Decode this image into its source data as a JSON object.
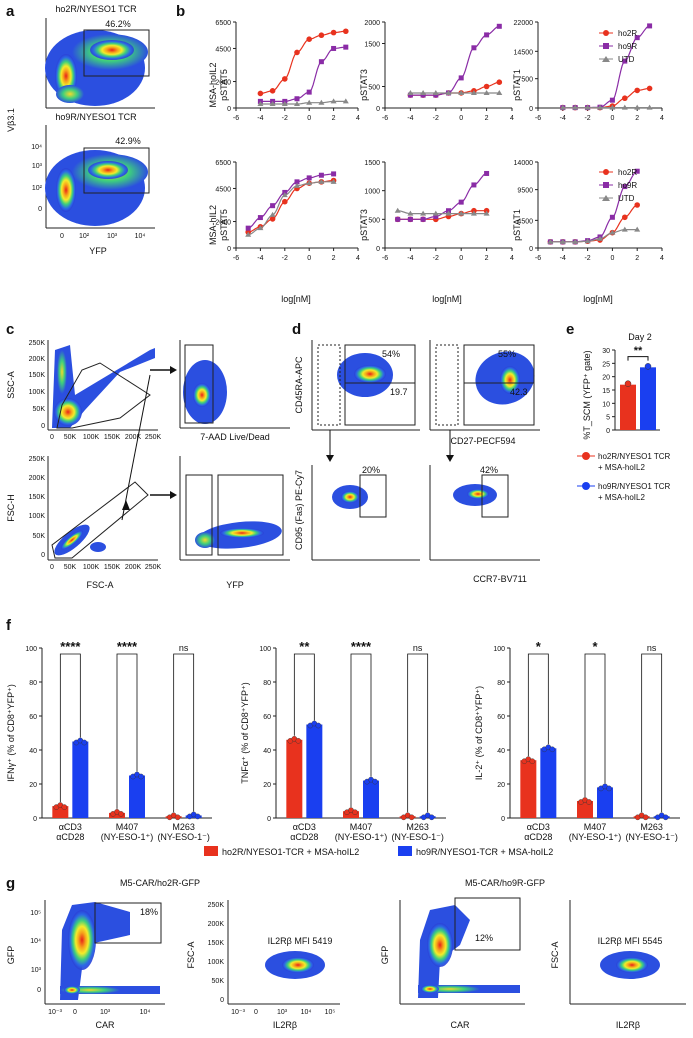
{
  "colors": {
    "ho2R": "#e8321e",
    "ho9R": "#8a2ca6",
    "UTD": "#888888",
    "bar_ho2R": "#e8321e",
    "bar_ho9R": "#1a3ff0"
  },
  "panels": {
    "a": "a",
    "b": "b",
    "c": "c",
    "d": "d",
    "e": "e",
    "f": "f",
    "g": "g"
  },
  "panel_a": {
    "top_title": "ho2R/NYESO1 TCR",
    "top_gate": "46.2%",
    "bottom_title": "ho9R/NYESO1 TCR",
    "bottom_gate": "42.9%",
    "ylabel": "Vβ3.1",
    "xlabel": "YFP",
    "yticks": [
      "10⁴",
      "10³",
      "10²",
      "0"
    ],
    "xticks": [
      "0",
      "10²",
      "10³",
      "10⁴"
    ]
  },
  "panel_b": {
    "xlabel": "log[nM]",
    "row1_label": [
      "MSA-hoIL2",
      "pSTAT5"
    ],
    "row2_label": [
      "MSA-hIL2",
      "pSTAT5"
    ],
    "col_labels": [
      "pSTAT5",
      "pSTAT3",
      "pSTAT1"
    ],
    "legend": [
      "ho2R",
      "ho9R",
      "UTD"
    ],
    "xticks": [
      "-6",
      "-4",
      "-2",
      "0",
      "2",
      "4"
    ]
  },
  "panel_c": {
    "ssc_label": "SSC-A",
    "fsch_label": "FSC-H",
    "fsca_label": "FSC-A",
    "live_label": "7-AAD Live/Dead",
    "yfp_label": "YFP",
    "yticks": [
      "250K",
      "200K",
      "150K",
      "100K",
      "50K",
      "0"
    ],
    "xticks": [
      "0",
      "50K",
      "100K",
      "150K",
      "200K",
      "250K"
    ]
  },
  "panel_d": {
    "ylabel_top": "CD45RA-APC",
    "xlabel_top": "CD27-PECF594",
    "ylabel_bottom": "CD95 (Fas) PE-Cy7",
    "xlabel_bottom": "CCR7-BV711",
    "q1_top": "54%",
    "q1_bot": "19.7",
    "q2_top": "55%",
    "q2_bot": "42.3",
    "q3": "20%",
    "q4": "42%"
  },
  "panel_e": {
    "title": "Day 2",
    "ylabel": "%T_SCM (YFP⁺ gate)",
    "sig": "**",
    "yticks": [
      "30",
      "25",
      "20",
      "15",
      "10",
      "5",
      "0"
    ],
    "legend": [
      "ho2R/NYESO1 TCR + MSA-hoIL2",
      "ho9R/NYESO1 TCR + MSA-hoIL2"
    ]
  },
  "panel_f": {
    "ylabels": [
      "IFNγ⁺ (% of CD8⁺YFP⁺)",
      "TNFα⁺ (% of CD8⁺YFP⁺)",
      "IL-2⁺ (% of CD8⁺YFP⁺)"
    ],
    "yticks": [
      "100",
      "80",
      "60",
      "40",
      "20",
      "0"
    ],
    "sigs": [
      [
        "****",
        "****",
        "ns"
      ],
      [
        "**",
        "****",
        "ns"
      ],
      [
        "*",
        "*",
        "ns"
      ]
    ],
    "legend": [
      "ho2R/NYESO1-TCR + MSA-hoIL2",
      "ho9R/NYESO1-TCR + MSA-hoIL2"
    ]
  },
  "panel_g": {
    "title1": "M5-CAR/ho2R-GFP",
    "title2": "M5-CAR/ho9R-GFP",
    "gate1": "18%",
    "gate2": "12%",
    "mfi1": "IL2Rβ MFI 5419",
    "mfi2": "IL2Rβ MFI 5545",
    "gfp": "GFP",
    "car": "CAR",
    "fsca": "FSC-A",
    "il2rb": "IL2Rβ",
    "gfp_ticks": [
      "10⁵",
      "10⁴",
      "10³",
      "0"
    ],
    "car_ticks": [
      "10⁻³",
      "0",
      "10³",
      "10⁴"
    ],
    "fsca_ticks": [
      "250K",
      "200K",
      "150K",
      "100K",
      "50K",
      "0"
    ],
    "il2rb_ticks": [
      "10⁻³",
      "0",
      "10³",
      "10⁴",
      "10⁵"
    ]
  },
  "chart_data": [
    {
      "type": "line",
      "title": "MSA-hoIL2 pSTAT5",
      "x": [
        -4,
        -3,
        -2,
        -1,
        0,
        1,
        2,
        3
      ],
      "series": [
        {
          "name": "ho2R",
          "values": [
            1100,
            1300,
            2200,
            4200,
            5200,
            5500,
            5700,
            5800
          ]
        },
        {
          "name": "ho9R",
          "values": [
            500,
            500,
            500,
            700,
            1200,
            3500,
            4500,
            4600
          ]
        },
        {
          "name": "UTD",
          "values": [
            300,
            300,
            300,
            300,
            400,
            400,
            500,
            500
          ]
        }
      ],
      "xlabel": "log[nM]",
      "ylim": [
        0,
        6500
      ]
    },
    {
      "type": "line",
      "title": "MSA-hoIL2 pSTAT3",
      "x": [
        -4,
        -3,
        -2,
        -1,
        0,
        1,
        2,
        3
      ],
      "series": [
        {
          "name": "ho2R",
          "values": [
            300,
            300,
            300,
            350,
            350,
            400,
            500,
            600
          ]
        },
        {
          "name": "ho9R",
          "values": [
            300,
            300,
            300,
            350,
            700,
            1400,
            1700,
            1900
          ]
        },
        {
          "name": "UTD",
          "values": [
            350,
            350,
            350,
            350,
            350,
            350,
            350,
            350
          ]
        }
      ],
      "xlabel": "log[nM]",
      "ylim": [
        0,
        2000
      ]
    },
    {
      "type": "line",
      "title": "MSA-hoIL2 pSTAT1",
      "x": [
        -4,
        -3,
        -2,
        -1,
        0,
        1,
        2,
        3
      ],
      "series": [
        {
          "name": "ho2R",
          "values": [
            100,
            100,
            100,
            100,
            500,
            2500,
            4500,
            5000
          ]
        },
        {
          "name": "ho9R",
          "values": [
            100,
            100,
            100,
            200,
            2000,
            12000,
            18000,
            21000
          ]
        },
        {
          "name": "UTD",
          "values": [
            100,
            100,
            100,
            100,
            100,
            100,
            100,
            100
          ]
        }
      ],
      "xlabel": "log[nM]",
      "ylim": [
        0,
        22000
      ]
    },
    {
      "type": "line",
      "title": "MSA-hIL2 pSTAT5",
      "x": [
        -5,
        -4,
        -3,
        -2,
        -1,
        0,
        1,
        2
      ],
      "series": [
        {
          "name": "ho2R",
          "values": [
            1200,
            1600,
            2200,
            3500,
            4500,
            4900,
            5000,
            5100
          ]
        },
        {
          "name": "ho9R",
          "values": [
            1500,
            2300,
            3200,
            4200,
            5000,
            5300,
            5500,
            5600
          ]
        },
        {
          "name": "UTD",
          "values": [
            1000,
            1500,
            2500,
            4000,
            4700,
            4900,
            5000,
            5000
          ]
        }
      ],
      "xlabel": "log[nM]",
      "ylim": [
        0,
        6500
      ]
    },
    {
      "type": "line",
      "title": "MSA-hIL2 pSTAT3",
      "x": [
        -5,
        -4,
        -3,
        -2,
        -1,
        0,
        1,
        2
      ],
      "series": [
        {
          "name": "ho2R",
          "values": [
            500,
            500,
            500,
            500,
            550,
            600,
            650,
            650
          ]
        },
        {
          "name": "ho9R",
          "values": [
            500,
            500,
            500,
            550,
            650,
            800,
            1100,
            1300
          ]
        },
        {
          "name": "UTD",
          "values": [
            650,
            600,
            600,
            600,
            600,
            600,
            600,
            600
          ]
        }
      ],
      "xlabel": "log[nM]",
      "ylim": [
        0,
        1500
      ]
    },
    {
      "type": "line",
      "title": "MSA-hIL2 pSTAT1",
      "x": [
        -5,
        -4,
        -3,
        -2,
        -1,
        0,
        1,
        2
      ],
      "series": [
        {
          "name": "ho2R",
          "values": [
            1000,
            1000,
            1000,
            1100,
            1300,
            2500,
            5000,
            7000
          ]
        },
        {
          "name": "ho9R",
          "values": [
            1000,
            1000,
            1000,
            1200,
            1800,
            5000,
            10000,
            12500
          ]
        },
        {
          "name": "UTD",
          "values": [
            1000,
            1000,
            1000,
            1100,
            1500,
            2500,
            3000,
            3000
          ]
        }
      ],
      "xlabel": "log[nM]",
      "ylim": [
        0,
        14000
      ]
    },
    {
      "type": "bar",
      "title": "Day 2",
      "categories": [
        "ho2R",
        "ho9R"
      ],
      "values": [
        17,
        23.5
      ],
      "ylim": [
        0,
        30
      ]
    },
    {
      "type": "bar",
      "title": "IFNγ",
      "categories": [
        "αCD3 αCD28",
        "M407 (NY-ESO-1⁺)",
        "M263 (NY-ESO-1⁻)"
      ],
      "series": [
        {
          "name": "ho2R",
          "values": [
            7,
            3,
            1
          ]
        },
        {
          "name": "ho9R",
          "values": [
            45,
            25,
            1.5
          ]
        }
      ],
      "ylim": [
        0,
        100
      ]
    },
    {
      "type": "bar",
      "title": "TNFα",
      "categories": [
        "αCD3 αCD28",
        "M407 (NY-ESO-1⁺)",
        "M263 (NY-ESO-1⁻)"
      ],
      "series": [
        {
          "name": "ho2R",
          "values": [
            46,
            4,
            1
          ]
        },
        {
          "name": "ho9R",
          "values": [
            55,
            22,
            1
          ]
        }
      ],
      "ylim": [
        0,
        100
      ]
    },
    {
      "type": "bar",
      "title": "IL-2",
      "categories": [
        "αCD3 αCD28",
        "M407 (NY-ESO-1⁺)",
        "M263 (NY-ESO-1⁻)"
      ],
      "series": [
        {
          "name": "ho2R",
          "values": [
            34,
            10,
            1
          ]
        },
        {
          "name": "ho9R",
          "values": [
            41,
            18,
            1
          ]
        }
      ],
      "ylim": [
        0,
        100
      ]
    }
  ]
}
